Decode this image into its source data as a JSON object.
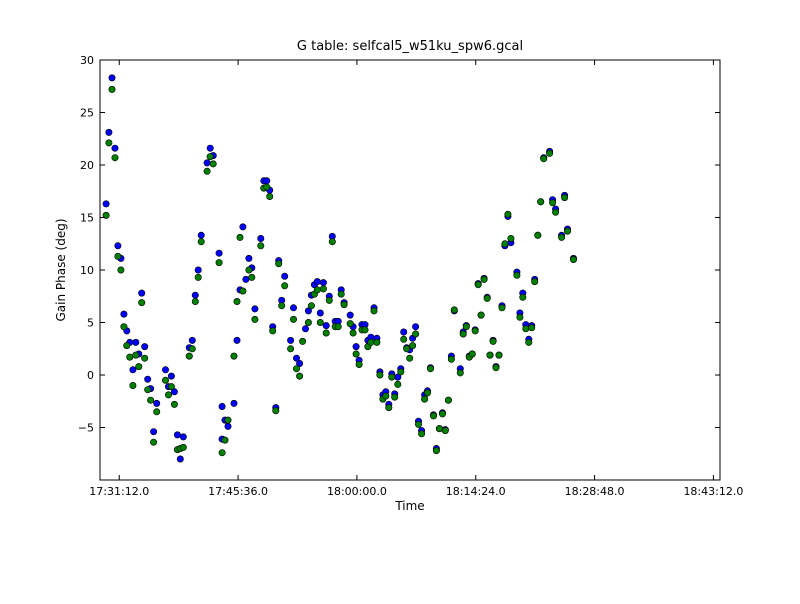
{
  "chart_data": {
    "type": "scatter",
    "title": "G table: selfcal5_w51ku_spw6.gcal",
    "xlabel": "Time",
    "ylabel": "Gain Phase (deg)",
    "xlim": [
      "17:28:52",
      "18:44:00"
    ],
    "ylim": [
      -10,
      30
    ],
    "x_ticks": [
      "17:31:12.0",
      "17:45:36.0",
      "18:00:00.0",
      "18:14:24.0",
      "18:28:48.0",
      "18:43:12.0"
    ],
    "y_ticks": [
      -5,
      0,
      5,
      10,
      15,
      20,
      25,
      30
    ],
    "grid": false,
    "series": [
      {
        "color": "#0000ff",
        "points": [
          [
            "17:29:36",
            16.3
          ],
          [
            "17:29:57",
            23.1
          ],
          [
            "17:30:19",
            28.3
          ],
          [
            "17:30:41",
            21.6
          ],
          [
            "17:31:02",
            12.3
          ],
          [
            "17:31:24",
            11.1
          ],
          [
            "17:31:46",
            5.8
          ],
          [
            "17:32:07",
            4.2
          ],
          [
            "17:32:29",
            3.1
          ],
          [
            "17:32:51",
            0.5
          ],
          [
            "17:33:12",
            3.1
          ],
          [
            "17:33:34",
            2.0
          ],
          [
            "17:33:55",
            7.8
          ],
          [
            "17:34:17",
            2.7
          ],
          [
            "17:34:39",
            -0.4
          ],
          [
            "17:35:00",
            -1.3
          ],
          [
            "17:35:44",
            -2.7
          ],
          [
            "17:35:22",
            -5.4
          ],
          [
            "17:36:48",
            0.5
          ],
          [
            "17:37:10",
            -1.1
          ],
          [
            "17:37:31",
            -0.1
          ],
          [
            "17:37:53",
            -1.6
          ],
          [
            "17:38:15",
            -5.7
          ],
          [
            "17:38:36",
            -8.0
          ],
          [
            "17:38:58",
            -5.9
          ],
          [
            "17:39:41",
            2.6
          ],
          [
            "17:40:03",
            3.3
          ],
          [
            "17:40:25",
            7.6
          ],
          [
            "17:40:46",
            10.0
          ],
          [
            "17:41:08",
            13.3
          ],
          [
            "17:41:51",
            20.2
          ],
          [
            "17:42:13",
            21.6
          ],
          [
            "17:42:35",
            20.9
          ],
          [
            "17:43:18",
            11.6
          ],
          [
            "17:43:40",
            -6.1
          ],
          [
            "17:43:40",
            -3.0
          ],
          [
            "17:44:01",
            -4.3
          ],
          [
            "17:44:23",
            -4.9
          ],
          [
            "17:45:06",
            -2.7
          ],
          [
            "17:45:28",
            3.3
          ],
          [
            "17:45:50",
            8.1
          ],
          [
            "17:46:11",
            14.1
          ],
          [
            "17:46:33",
            9.1
          ],
          [
            "17:46:55",
            11.1
          ],
          [
            "17:47:16",
            10.2
          ],
          [
            "17:47:38",
            6.3
          ],
          [
            "17:48:21",
            13.0
          ],
          [
            "17:48:43",
            18.5
          ],
          [
            "17:49:05",
            18.5
          ],
          [
            "17:49:26",
            17.6
          ],
          [
            "17:49:48",
            4.6
          ],
          [
            "17:50:10",
            -3.1
          ],
          [
            "17:50:31",
            10.9
          ],
          [
            "17:50:53",
            7.1
          ],
          [
            "17:51:15",
            9.4
          ],
          [
            "17:51:58",
            3.3
          ],
          [
            "17:52:19",
            6.4
          ],
          [
            "17:52:41",
            1.6
          ],
          [
            "17:53:03",
            1.1
          ],
          [
            "17:53:46",
            4.4
          ],
          [
            "17:54:07",
            6.1
          ],
          [
            "17:54:29",
            7.6
          ],
          [
            "17:54:51",
            8.6
          ],
          [
            "17:55:12",
            8.9
          ],
          [
            "17:55:34",
            5.9
          ],
          [
            "17:55:56",
            8.8
          ],
          [
            "17:56:17",
            4.7
          ],
          [
            "17:56:39",
            7.5
          ],
          [
            "17:57:01",
            13.2
          ],
          [
            "17:57:22",
            5.1
          ],
          [
            "17:57:44",
            5.1
          ],
          [
            "17:58:06",
            8.1
          ],
          [
            "17:58:27",
            6.9
          ],
          [
            "17:59:11",
            5.7
          ],
          [
            "17:59:32",
            4.6
          ],
          [
            "17:59:54",
            2.7
          ],
          [
            "18:00:16",
            1.4
          ],
          [
            "18:00:37",
            4.8
          ],
          [
            "18:00:59",
            4.8
          ],
          [
            "18:01:20",
            3.3
          ],
          [
            "18:01:42",
            3.6
          ],
          [
            "18:02:04",
            6.4
          ],
          [
            "18:02:25",
            3.5
          ],
          [
            "18:02:47",
            0.3
          ],
          [
            "18:03:09",
            -1.9
          ],
          [
            "18:03:30",
            -1.6
          ],
          [
            "18:03:52",
            -2.8
          ],
          [
            "18:04:14",
            0.1
          ],
          [
            "18:04:35",
            -1.8
          ],
          [
            "18:04:57",
            -0.2
          ],
          [
            "18:05:19",
            0.6
          ],
          [
            "18:05:40",
            4.1
          ],
          [
            "18:06:02",
            2.6
          ],
          [
            "18:06:24",
            2.4
          ],
          [
            "18:06:45",
            3.5
          ],
          [
            "18:07:07",
            4.6
          ],
          [
            "18:07:28",
            -4.4
          ],
          [
            "18:07:50",
            -5.3
          ],
          [
            "18:08:12",
            -1.9
          ],
          [
            "18:08:33",
            -1.5
          ],
          [
            "18:08:55",
            0.7
          ],
          [
            "18:09:17",
            -3.8
          ],
          [
            "18:09:38",
            -7.0
          ],
          [
            "18:10:00",
            -5.1
          ],
          [
            "18:10:22",
            -3.6
          ],
          [
            "18:10:43",
            -5.2
          ],
          [
            "18:11:05",
            -2.4
          ],
          [
            "18:11:27",
            1.8
          ],
          [
            "18:11:48",
            6.1
          ],
          [
            "18:12:32",
            0.6
          ],
          [
            "18:12:53",
            4.1
          ],
          [
            "18:13:15",
            4.7
          ],
          [
            "18:13:37",
            1.8
          ],
          [
            "18:13:58",
            2.0
          ],
          [
            "18:14:20",
            4.3
          ],
          [
            "18:14:42",
            8.7
          ],
          [
            "18:15:03",
            5.7
          ],
          [
            "18:15:25",
            9.2
          ],
          [
            "18:15:47",
            7.4
          ],
          [
            "18:16:08",
            1.9
          ],
          [
            "18:16:30",
            3.3
          ],
          [
            "18:16:51",
            0.8
          ],
          [
            "18:17:13",
            1.9
          ],
          [
            "18:17:35",
            6.6
          ],
          [
            "18:17:56",
            12.3
          ],
          [
            "18:18:18",
            15.1
          ],
          [
            "18:18:40",
            12.6
          ],
          [
            "18:19:23",
            9.8
          ],
          [
            "18:19:45",
            5.9
          ],
          [
            "18:20:06",
            7.8
          ],
          [
            "18:20:28",
            4.8
          ],
          [
            "18:20:50",
            3.4
          ],
          [
            "18:21:11",
            4.7
          ],
          [
            "18:21:33",
            9.1
          ],
          [
            "18:21:55",
            13.3
          ],
          [
            "18:22:16",
            16.5
          ],
          [
            "18:22:38",
            20.7
          ],
          [
            "18:23:21",
            21.3
          ],
          [
            "18:23:43",
            16.7
          ],
          [
            "18:24:05",
            15.8
          ],
          [
            "18:24:48",
            13.3
          ],
          [
            "18:25:10",
            17.1
          ],
          [
            "18:25:31",
            13.9
          ],
          [
            "18:26:15",
            11.1
          ]
        ]
      },
      {
        "color": "#008000",
        "points": [
          [
            "17:29:36",
            15.2
          ],
          [
            "17:29:57",
            22.1
          ],
          [
            "17:30:19",
            27.2
          ],
          [
            "17:30:41",
            20.7
          ],
          [
            "17:31:02",
            11.3
          ],
          [
            "17:31:24",
            10.0
          ],
          [
            "17:31:46",
            4.6
          ],
          [
            "17:32:07",
            2.8
          ],
          [
            "17:32:29",
            1.7
          ],
          [
            "17:32:51",
            -1.0
          ],
          [
            "17:33:12",
            1.9
          ],
          [
            "17:33:34",
            0.8
          ],
          [
            "17:33:55",
            6.9
          ],
          [
            "17:34:17",
            1.6
          ],
          [
            "17:34:39",
            -1.4
          ],
          [
            "17:35:00",
            -2.4
          ],
          [
            "17:35:44",
            -3.5
          ],
          [
            "17:35:22",
            -6.4
          ],
          [
            "17:36:48",
            -0.5
          ],
          [
            "17:37:10",
            -1.9
          ],
          [
            "17:37:31",
            -1.1
          ],
          [
            "17:37:53",
            -2.8
          ],
          [
            "17:38:15",
            -7.1
          ],
          [
            "17:38:36",
            -7.0
          ],
          [
            "17:38:58",
            -6.9
          ],
          [
            "17:39:41",
            1.8
          ],
          [
            "17:40:03",
            2.5
          ],
          [
            "17:40:25",
            7.0
          ],
          [
            "17:40:46",
            9.3
          ],
          [
            "17:41:08",
            12.7
          ],
          [
            "17:41:51",
            19.4
          ],
          [
            "17:42:13",
            20.8
          ],
          [
            "17:42:35",
            20.1
          ],
          [
            "17:43:18",
            10.7
          ],
          [
            "17:43:40",
            -7.4
          ],
          [
            "17:44:01",
            -6.2
          ],
          [
            "17:44:23",
            -4.3
          ],
          [
            "17:45:06",
            1.8
          ],
          [
            "17:45:28",
            7.0
          ],
          [
            "17:45:50",
            13.1
          ],
          [
            "17:46:11",
            8.0
          ],
          [
            "17:46:55",
            10.0
          ],
          [
            "17:47:16",
            9.3
          ],
          [
            "17:47:38",
            5.3
          ],
          [
            "17:48:21",
            12.3
          ],
          [
            "17:48:43",
            17.8
          ],
          [
            "17:49:05",
            17.9
          ],
          [
            "17:49:26",
            17.0
          ],
          [
            "17:49:48",
            4.2
          ],
          [
            "17:50:10",
            -3.4
          ],
          [
            "17:50:31",
            10.6
          ],
          [
            "17:50:53",
            6.6
          ],
          [
            "17:51:15",
            8.5
          ],
          [
            "17:51:58",
            2.5
          ],
          [
            "17:52:19",
            5.3
          ],
          [
            "17:52:41",
            0.6
          ],
          [
            "17:53:03",
            -0.1
          ],
          [
            "17:53:25",
            3.2
          ],
          [
            "17:54:07",
            5.0
          ],
          [
            "17:54:29",
            6.6
          ],
          [
            "17:54:51",
            7.7
          ],
          [
            "17:55:12",
            8.1
          ],
          [
            "17:55:34",
            5.0
          ],
          [
            "17:55:56",
            8.2
          ],
          [
            "17:56:17",
            4.0
          ],
          [
            "17:56:39",
            7.1
          ],
          [
            "17:57:01",
            12.7
          ],
          [
            "17:57:22",
            4.6
          ],
          [
            "17:57:44",
            4.6
          ],
          [
            "17:58:06",
            7.7
          ],
          [
            "17:58:27",
            6.7
          ],
          [
            "17:59:11",
            4.9
          ],
          [
            "17:59:32",
            4.0
          ],
          [
            "17:59:54",
            2.0
          ],
          [
            "18:00:16",
            1.0
          ],
          [
            "18:00:37",
            4.3
          ],
          [
            "18:00:59",
            4.3
          ],
          [
            "18:01:20",
            2.7
          ],
          [
            "18:01:42",
            3.1
          ],
          [
            "18:02:04",
            6.1
          ],
          [
            "18:02:25",
            3.1
          ],
          [
            "18:02:47",
            0.0
          ],
          [
            "18:03:09",
            -2.3
          ],
          [
            "18:03:30",
            -2.0
          ],
          [
            "18:03:52",
            -3.1
          ],
          [
            "18:04:14",
            -0.2
          ],
          [
            "18:04:35",
            -2.1
          ],
          [
            "18:04:57",
            -0.9
          ],
          [
            "18:05:19",
            0.3
          ],
          [
            "18:05:40",
            3.4
          ],
          [
            "18:06:02",
            2.5
          ],
          [
            "18:06:24",
            1.6
          ],
          [
            "18:06:45",
            2.8
          ],
          [
            "18:07:07",
            3.9
          ],
          [
            "18:07:28",
            -4.7
          ],
          [
            "18:07:50",
            -5.6
          ],
          [
            "18:08:12",
            -2.3
          ],
          [
            "18:08:33",
            -1.7
          ],
          [
            "18:08:55",
            0.6
          ],
          [
            "18:09:17",
            -3.9
          ],
          [
            "18:09:38",
            -7.2
          ],
          [
            "18:10:00",
            -5.1
          ],
          [
            "18:10:22",
            -3.7
          ],
          [
            "18:10:43",
            -5.3
          ],
          [
            "18:11:05",
            -2.4
          ],
          [
            "18:11:27",
            1.5
          ],
          [
            "18:11:48",
            6.2
          ],
          [
            "18:12:32",
            0.2
          ],
          [
            "18:12:53",
            3.9
          ],
          [
            "18:13:15",
            4.6
          ],
          [
            "18:13:37",
            1.7
          ],
          [
            "18:13:58",
            2.0
          ],
          [
            "18:14:20",
            4.2
          ],
          [
            "18:14:42",
            8.6
          ],
          [
            "18:15:03",
            5.7
          ],
          [
            "18:15:25",
            9.1
          ],
          [
            "18:15:47",
            7.3
          ],
          [
            "18:16:08",
            1.9
          ],
          [
            "18:16:30",
            3.2
          ],
          [
            "18:16:51",
            0.7
          ],
          [
            "18:17:13",
            1.9
          ],
          [
            "18:17:35",
            6.4
          ],
          [
            "18:17:56",
            12.5
          ],
          [
            "18:18:18",
            15.3
          ],
          [
            "18:18:40",
            13.0
          ],
          [
            "18:19:23",
            9.5
          ],
          [
            "18:19:45",
            5.5
          ],
          [
            "18:20:06",
            7.4
          ],
          [
            "18:20:28",
            4.4
          ],
          [
            "18:20:50",
            3.1
          ],
          [
            "18:21:11",
            4.5
          ],
          [
            "18:21:33",
            8.9
          ],
          [
            "18:21:55",
            13.3
          ],
          [
            "18:22:16",
            16.5
          ],
          [
            "18:22:38",
            20.6
          ],
          [
            "18:23:21",
            21.1
          ],
          [
            "18:23:43",
            16.4
          ],
          [
            "18:24:05",
            15.5
          ],
          [
            "18:24:48",
            13.1
          ],
          [
            "18:25:10",
            16.9
          ],
          [
            "18:25:31",
            13.7
          ],
          [
            "18:26:15",
            11.0
          ]
        ]
      }
    ]
  }
}
